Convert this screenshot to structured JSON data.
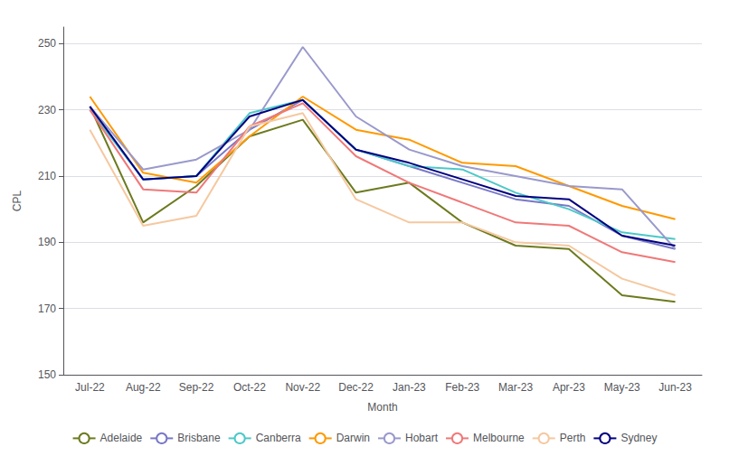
{
  "chart_data": {
    "type": "line",
    "categories": [
      "Jul-22",
      "Aug-22",
      "Sep-22",
      "Oct-22",
      "Nov-22",
      "Dec-22",
      "Jan-23",
      "Feb-23",
      "Mar-23",
      "Apr-23",
      "May-23",
      "Jun-23"
    ],
    "series": [
      {
        "name": "Adelaide",
        "color": "#6d7a1e",
        "values": [
          231,
          196,
          207,
          222,
          227,
          205,
          208,
          196,
          189,
          188,
          174,
          172
        ]
      },
      {
        "name": "Brisbane",
        "color": "#7878c8",
        "values": [
          231,
          209,
          210,
          224,
          233,
          218,
          213,
          208,
          203,
          201,
          192,
          188
        ]
      },
      {
        "name": "Canberra",
        "color": "#4dc8c8",
        "values": [
          230,
          209,
          210,
          229,
          233,
          218,
          213,
          212,
          205,
          200,
          193,
          191
        ]
      },
      {
        "name": "Darwin",
        "color": "#ff9900",
        "values": [
          234,
          211,
          208,
          222,
          234,
          224,
          221,
          214,
          213,
          207,
          201,
          197
        ]
      },
      {
        "name": "Hobart",
        "color": "#9999cc",
        "values": [
          231,
          212,
          215,
          224,
          249,
          228,
          218,
          213,
          210,
          207,
          206,
          188
        ]
      },
      {
        "name": "Melbourne",
        "color": "#f07878",
        "values": [
          230,
          206,
          205,
          225,
          232,
          216,
          208,
          202,
          196,
          195,
          187,
          184
        ]
      },
      {
        "name": "Perth",
        "color": "#f5c8a0",
        "values": [
          224,
          195,
          198,
          225,
          229,
          203,
          196,
          196,
          190,
          189,
          179,
          174
        ]
      },
      {
        "name": "Sydney",
        "color": "#000080",
        "values": [
          231,
          209,
          210,
          228,
          233,
          218,
          214,
          209,
          204,
          203,
          192,
          189
        ]
      }
    ],
    "xlabel": "Month",
    "ylabel": "CPL",
    "ylim": [
      150,
      255
    ],
    "yticks": [
      150,
      170,
      190,
      210,
      230,
      250
    ],
    "grid": true,
    "legend": "bottom"
  }
}
